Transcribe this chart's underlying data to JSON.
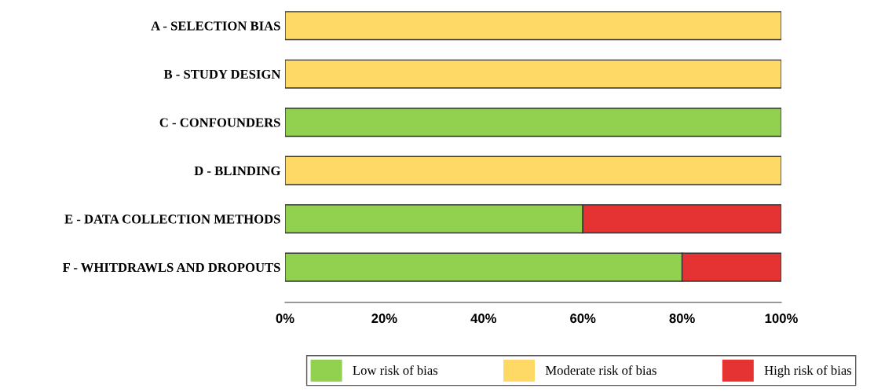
{
  "chart_data": {
    "type": "bar",
    "orientation": "horizontal",
    "stacked": true,
    "categories": [
      "A - SELECTION BIAS",
      "B - STUDY DESIGN",
      "C - CONFOUNDERS",
      "D - BLINDING",
      "E - DATA COLLECTION METHODS",
      "F - WHITDRAWLS AND DROPOUTS"
    ],
    "series": [
      {
        "name": "Low risk of bias",
        "color": "#92d050",
        "values": [
          0,
          0,
          100,
          0,
          60,
          80
        ]
      },
      {
        "name": "Moderate risk of bias",
        "color": "#ffd966",
        "values": [
          100,
          100,
          0,
          100,
          0,
          0
        ]
      },
      {
        "name": "High risk of bias",
        "color": "#e53232",
        "values": [
          0,
          0,
          0,
          0,
          40,
          20
        ]
      }
    ],
    "xlim": [
      0,
      100
    ],
    "xticks": [
      {
        "value": 0,
        "label": "0%"
      },
      {
        "value": 20,
        "label": "20%"
      },
      {
        "value": 40,
        "label": "40%"
      },
      {
        "value": 60,
        "label": "60%"
      },
      {
        "value": 80,
        "label": "80%"
      },
      {
        "value": 100,
        "label": "100%"
      }
    ],
    "grid": false,
    "legend": "bottom"
  }
}
